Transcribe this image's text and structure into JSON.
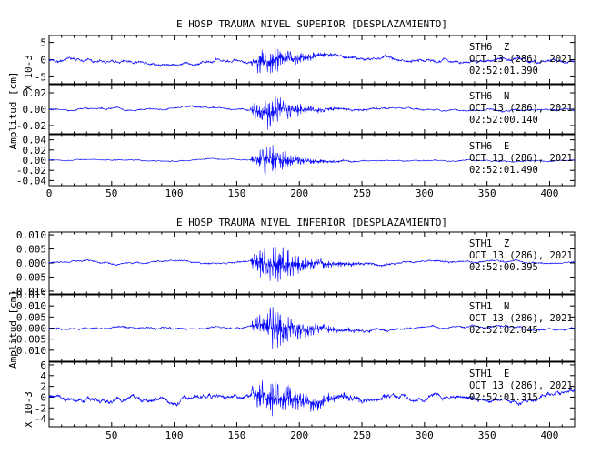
{
  "chart_data": [
    {
      "type": "line",
      "title": "E HOSP TRAUMA NIVEL SUPERIOR [DESPLAZAMIENTO]",
      "ylabel": "Amplitud [cm]",
      "xlim": [
        0,
        420
      ],
      "xticks": [
        0,
        50,
        100,
        150,
        200,
        250,
        300,
        350,
        400
      ],
      "channels": [
        {
          "station": "STH6",
          "component": "Z",
          "date": "OCT 13 (286), 2021",
          "time": "02:52:01.390",
          "scale_label": "X 10-3",
          "ylim": [
            -7,
            7
          ],
          "yticks": [
            -5,
            0,
            5
          ],
          "ytick_labels": [
            "-5",
            "0",
            "5"
          ],
          "peak_amplitude": 6.5,
          "background_amplitude": 0.4,
          "arrival_time": 161,
          "peak_time": 176,
          "decay_seconds": 32
        },
        {
          "station": "STH6",
          "component": "N",
          "date": "OCT 13 (286), 2021",
          "time": "02:52:00.140",
          "ylim": [
            -0.03,
            0.03
          ],
          "yticks": [
            -0.02,
            0,
            0.02
          ],
          "ytick_labels": [
            "-0.02",
            "0.00",
            "0.02"
          ],
          "peak_amplitude": 0.026,
          "background_amplitude": 0.001,
          "arrival_time": 161,
          "peak_time": 176,
          "decay_seconds": 32
        },
        {
          "station": "STH6",
          "component": "E",
          "date": "OCT 13 (286), 2021",
          "time": "02:52:01.490",
          "ylim": [
            -0.05,
            0.05
          ],
          "yticks": [
            -0.04,
            -0.02,
            0,
            0.02,
            0.04
          ],
          "ytick_labels": [
            "-0.04",
            "-0.02",
            "0.00",
            "0.02",
            "0.04"
          ],
          "peak_amplitude": 0.04,
          "background_amplitude": 0.001,
          "arrival_time": 161,
          "peak_time": 176,
          "decay_seconds": 30
        }
      ]
    },
    {
      "type": "line",
      "title": "E HOSP TRAUMA NIVEL INFERIOR [DESPLAZAMIENTO]",
      "ylabel": "Amplitud [cm]",
      "xlim": [
        0,
        420
      ],
      "xticks": [
        50,
        100,
        150,
        200,
        250,
        300,
        350,
        400
      ],
      "channels": [
        {
          "station": "STH1",
          "component": "Z",
          "date": "OCT 13 (286), 2021",
          "time": "02:52:00.395",
          "ylim": [
            -0.011,
            0.011
          ],
          "yticks": [
            -0.01,
            -0.005,
            0,
            0.005,
            0.01
          ],
          "ytick_labels": [
            "-0.010",
            "-0.005",
            "0.000",
            "0.005",
            "0.010"
          ],
          "peak_amplitude": 0.01,
          "background_amplitude": 0.0003,
          "arrival_time": 161,
          "peak_time": 178,
          "decay_seconds": 40
        },
        {
          "station": "STH1",
          "component": "N",
          "date": "OCT 13 (286), 2021",
          "time": "02:52:02.045",
          "ylim": [
            -0.015,
            0.015
          ],
          "yticks": [
            -0.01,
            -0.005,
            0,
            0.005,
            0.01,
            0.015
          ],
          "ytick_labels": [
            "-0.010",
            "-0.005",
            "0.000",
            "0.005",
            "0.010",
            "0.015"
          ],
          "peak_amplitude": 0.012,
          "background_amplitude": 0.0004,
          "arrival_time": 161,
          "peak_time": 178,
          "decay_seconds": 40
        },
        {
          "station": "STH1",
          "component": "E",
          "date": "OCT 13 (286), 2021",
          "time": "02:52:01.315",
          "scale_label": "X 10-3",
          "ylim": [
            -5.5,
            6.5
          ],
          "yticks": [
            -4,
            -2,
            0,
            2,
            4,
            6
          ],
          "ytick_labels": [
            "-4",
            "-2",
            "0",
            "2",
            "4",
            "6"
          ],
          "peak_amplitude": 4.8,
          "background_amplitude": 0.4,
          "arrival_time": 161,
          "peak_time": 178,
          "decay_seconds": 50
        }
      ]
    }
  ]
}
